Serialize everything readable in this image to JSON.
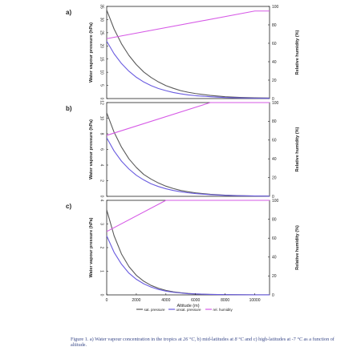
{
  "chart_data": [
    {
      "type": "line",
      "panel_label": "a)",
      "ylabel_left": "Water vapour pressure (hPa)",
      "ylabel_right": "Relative humidity (%)",
      "ylim_left": [
        0,
        35
      ],
      "yticks_left": [
        0,
        5,
        10,
        15,
        20,
        25,
        30,
        35
      ],
      "ylim_right": [
        0,
        100
      ],
      "yticks_right": [
        0,
        20,
        40,
        60,
        80,
        100
      ],
      "xlim": [
        0,
        11000
      ],
      "grid": false,
      "series": [
        {
          "name": "sat. pressure",
          "axis": "left",
          "x": [
            0,
            500,
            1000,
            1500,
            2000,
            2500,
            3000,
            3500,
            4000,
            4500,
            5000,
            5500,
            6000,
            7000,
            8000,
            9000,
            10000,
            11000
          ],
          "y": [
            33.6,
            26.4,
            20.8,
            16.4,
            12.9,
            10.1,
            8.0,
            6.3,
            4.9,
            3.9,
            3.0,
            2.4,
            1.9,
            1.2,
            0.7,
            0.45,
            0.3,
            0.2
          ]
        },
        {
          "name": "unsat. pressure",
          "axis": "left",
          "x": [
            0,
            500,
            1000,
            1500,
            2000,
            2500,
            3000,
            3500,
            4000,
            4500,
            5000,
            5500,
            6000,
            7000,
            8000,
            9000,
            10000,
            11000
          ],
          "y": [
            21.8,
            17.0,
            13.3,
            10.4,
            8.1,
            6.3,
            4.9,
            3.8,
            3.0,
            2.3,
            1.8,
            1.4,
            1.1,
            0.7,
            0.4,
            0.25,
            0.15,
            0.1
          ]
        },
        {
          "name": "rel. humidity",
          "axis": "right",
          "x": [
            0,
            10000,
            11000
          ],
          "y": [
            65,
            95,
            95
          ]
        }
      ]
    },
    {
      "type": "line",
      "panel_label": "b)",
      "ylabel_left": "Water vapour pressure (hPa)",
      "ylabel_right": "Relative humidity (%)",
      "ylim_left": [
        0,
        12
      ],
      "yticks_left": [
        0,
        2,
        4,
        6,
        8,
        10,
        12
      ],
      "ylim_right": [
        0,
        100
      ],
      "yticks_right": [
        0,
        20,
        40,
        60,
        80,
        100
      ],
      "xlim": [
        0,
        11000
      ],
      "grid": false,
      "series": [
        {
          "name": "sat. pressure",
          "axis": "left",
          "x": [
            0,
            500,
            1000,
            1500,
            2000,
            2500,
            3000,
            3500,
            4000,
            4500,
            5000,
            5500,
            6000,
            7000,
            8000,
            9000,
            10000,
            11000
          ],
          "y": [
            10.7,
            8.2,
            6.3,
            4.8,
            3.7,
            2.8,
            2.2,
            1.7,
            1.3,
            1.0,
            0.75,
            0.58,
            0.45,
            0.26,
            0.15,
            0.09,
            0.05,
            0.03
          ]
        },
        {
          "name": "unsat. pressure",
          "axis": "left",
          "x": [
            0,
            500,
            1000,
            1500,
            2000,
            2500,
            3000,
            3500,
            4000,
            4500,
            5000,
            5500,
            6000,
            7000,
            8000,
            9000,
            10000,
            11000
          ],
          "y": [
            7.5,
            5.8,
            4.5,
            3.5,
            2.7,
            2.1,
            1.6,
            1.25,
            0.97,
            0.75,
            0.58,
            0.45,
            0.35,
            0.21,
            0.12,
            0.07,
            0.04,
            0.02
          ]
        },
        {
          "name": "rel. humidity",
          "axis": "right",
          "x": [
            0,
            7000,
            11000
          ],
          "y": [
            65,
            100,
            100
          ]
        }
      ]
    },
    {
      "type": "line",
      "panel_label": "c)",
      "ylabel_left": "Water vapour pressure (hPa)",
      "ylabel_right": "Relative humidity (%)",
      "ylim_left": [
        0,
        4
      ],
      "yticks_left": [
        0,
        1,
        2,
        3,
        4
      ],
      "ylim_right": [
        0,
        100
      ],
      "yticks_right": [
        0,
        20,
        40,
        60,
        80,
        100
      ],
      "xlim": [
        0,
        11000
      ],
      "xlabel": "Altitude (m)",
      "xticks": [
        0,
        2000,
        4000,
        6000,
        8000,
        10000
      ],
      "grid": false,
      "legend_position": "bottom",
      "series": [
        {
          "name": "sat. pressure",
          "axis": "left",
          "x": [
            0,
            500,
            1000,
            1500,
            2000,
            2500,
            3000,
            3500,
            4000,
            4500,
            5000,
            5500,
            6000,
            7000,
            8000,
            9000,
            10000,
            11000
          ],
          "y": [
            3.6,
            2.5,
            1.73,
            1.2,
            0.83,
            0.58,
            0.4,
            0.28,
            0.19,
            0.13,
            0.09,
            0.06,
            0.04,
            0.02,
            0.01,
            0.005,
            0.003,
            0.002
          ]
        },
        {
          "name": "unsat. pressure",
          "axis": "left",
          "x": [
            0,
            500,
            1000,
            1500,
            2000,
            2500,
            3000,
            3500,
            4000,
            4500,
            5000,
            5500,
            6000,
            7000,
            8000,
            9000,
            10000,
            11000
          ],
          "y": [
            2.5,
            1.8,
            1.3,
            0.92,
            0.66,
            0.47,
            0.33,
            0.23,
            0.16,
            0.11,
            0.08,
            0.05,
            0.04,
            0.02,
            0.01,
            0.005,
            0.003,
            0.002
          ]
        },
        {
          "name": "rel. humidity",
          "axis": "right",
          "x": [
            0,
            4000,
            11000
          ],
          "y": [
            67,
            100,
            100
          ]
        }
      ]
    }
  ],
  "legend": {
    "sat": "sat. pressure",
    "unsat": "unsat. pressure",
    "rh": "rel. humidity"
  },
  "colors": {
    "sat": "#5a5a5a",
    "unsat": "#6a5ce0",
    "rh": "#d65ae6",
    "axis": "#222222"
  },
  "caption": {
    "p1": "Figure 1.  a) Water vapour concentration in the tropics at ",
    "v1": "26 °C",
    "p2": ", b) mid-latitudes at ",
    "v2": "8 °C",
    "p3": " and c) high-latitudes at -7 ",
    "v3": "°C",
    "p4": " as a function of altitude."
  }
}
